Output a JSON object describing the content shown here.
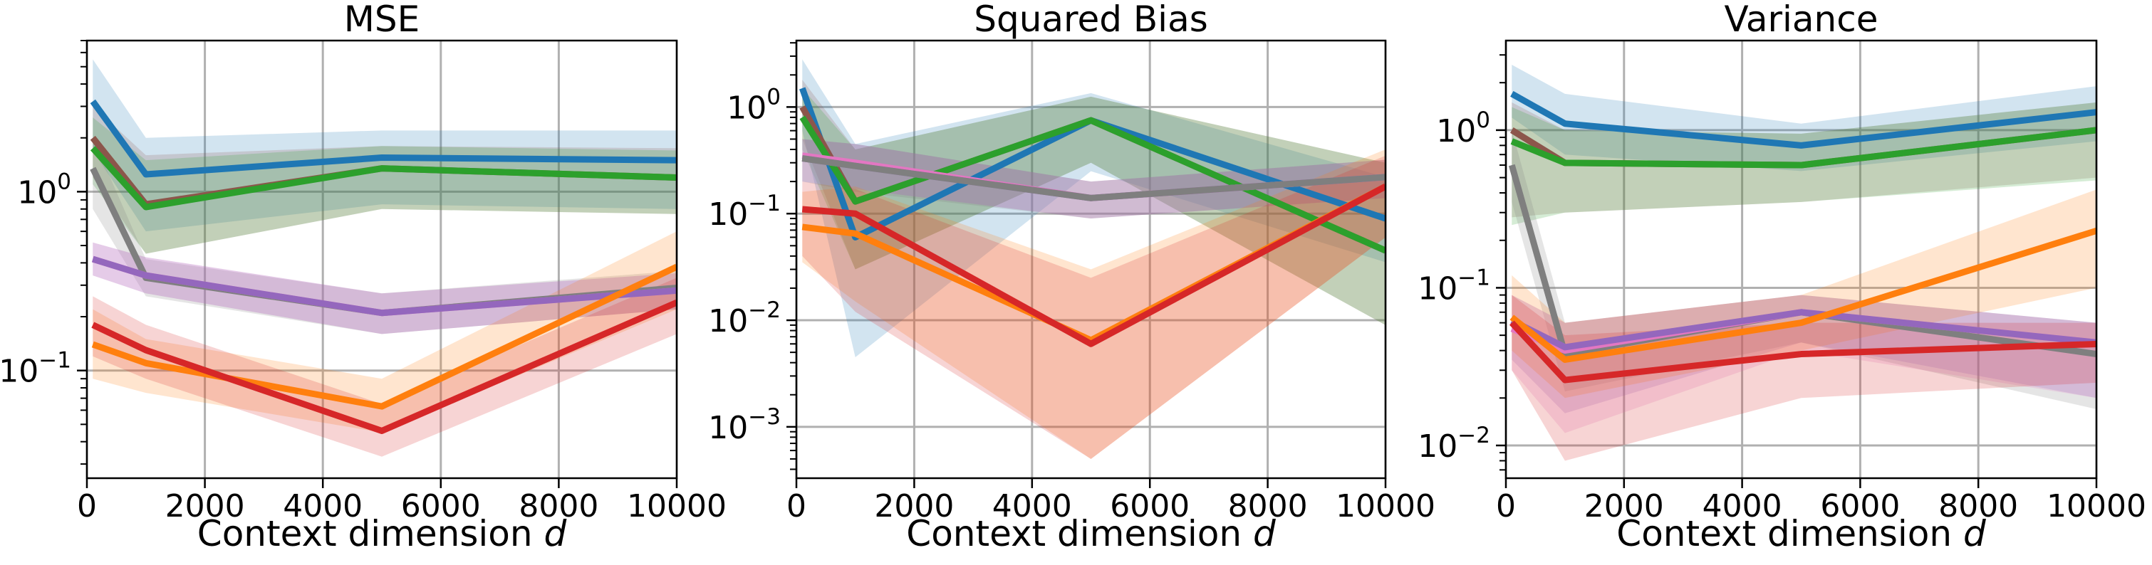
{
  "colors": {
    "blue": "#1f77b4",
    "orange": "#ff7f0e",
    "green": "#2ca02c",
    "red": "#d62728",
    "purple": "#9467bd",
    "brown": "#8c564b",
    "pink": "#e377c2",
    "gray": "#7f7f7f",
    "grid": "#b0b0b0"
  },
  "chart_data": [
    {
      "type": "line",
      "title": "MSE",
      "xlabel": "Context dimension",
      "xlabel_var": "d",
      "ylabel": "",
      "yscale": "log",
      "xlim": [
        0,
        10000
      ],
      "ylim": [
        0.025,
        7
      ],
      "grid": true,
      "x": [
        100,
        1000,
        5000,
        10000
      ],
      "x_ticks": [
        0,
        2000,
        4000,
        6000,
        8000,
        10000
      ],
      "x_tick_labels": [
        "0",
        "2000",
        "4000",
        "6000",
        "8000",
        "10000"
      ],
      "y_ticks": [
        0.1,
        1
      ],
      "y_tick_bases": [
        "10",
        "10"
      ],
      "y_tick_exps": [
        "−1",
        "0"
      ],
      "series": [
        {
          "color": "blue",
          "values": [
            3.2,
            1.25,
            1.55,
            1.5
          ],
          "lower": [
            1.7,
            0.6,
            0.85,
            0.8
          ],
          "upper": [
            5.5,
            2.0,
            2.2,
            2.2
          ]
        },
        {
          "color": "brown",
          "values": [
            2.0,
            0.85,
            1.35,
            1.2
          ],
          "lower": [
            1.2,
            0.45,
            0.8,
            0.75
          ],
          "upper": [
            3.0,
            1.6,
            1.8,
            1.75
          ]
        },
        {
          "color": "green",
          "values": [
            1.75,
            0.82,
            1.35,
            1.2
          ],
          "lower": [
            1.1,
            0.45,
            0.8,
            0.75
          ],
          "upper": [
            2.6,
            1.5,
            1.8,
            1.7
          ]
        },
        {
          "color": "gray",
          "values": [
            1.35,
            0.33,
            0.21,
            0.29
          ],
          "lower": [
            0.8,
            0.26,
            0.16,
            0.22
          ],
          "upper": [
            2.0,
            0.42,
            0.27,
            0.36
          ]
        },
        {
          "color": "pink",
          "values": [
            0.42,
            0.34,
            0.21,
            0.28
          ],
          "lower": [
            0.34,
            0.27,
            0.16,
            0.22
          ],
          "upper": [
            0.52,
            0.43,
            0.27,
            0.35
          ]
        },
        {
          "color": "purple",
          "values": [
            0.42,
            0.34,
            0.21,
            0.28
          ],
          "lower": [
            0.34,
            0.27,
            0.16,
            0.22
          ],
          "upper": [
            0.52,
            0.43,
            0.27,
            0.35
          ]
        },
        {
          "color": "orange",
          "values": [
            0.14,
            0.11,
            0.063,
            0.38
          ],
          "lower": [
            0.09,
            0.075,
            0.045,
            0.22
          ],
          "upper": [
            0.22,
            0.15,
            0.09,
            0.6
          ]
        },
        {
          "color": "red",
          "values": [
            0.18,
            0.13,
            0.046,
            0.24
          ],
          "lower": [
            0.12,
            0.09,
            0.033,
            0.16
          ],
          "upper": [
            0.26,
            0.18,
            0.065,
            0.33
          ]
        }
      ]
    },
    {
      "type": "line",
      "title": "Squared Bias",
      "xlabel": "Context dimension",
      "xlabel_var": "d",
      "ylabel": "",
      "yscale": "log",
      "xlim": [
        0,
        10000
      ],
      "ylim": [
        0.00033,
        4.2
      ],
      "grid": true,
      "x": [
        100,
        1000,
        5000,
        10000
      ],
      "x_ticks": [
        0,
        2000,
        4000,
        6000,
        8000,
        10000
      ],
      "x_tick_labels": [
        "0",
        "2000",
        "4000",
        "6000",
        "8000",
        "10000"
      ],
      "y_ticks": [
        0.001,
        0.01,
        0.1,
        1
      ],
      "y_tick_bases": [
        "10",
        "10",
        "10",
        "10"
      ],
      "y_tick_exps": [
        "−3",
        "−2",
        "−1",
        "0"
      ],
      "series": [
        {
          "color": "blue",
          "values": [
            1.5,
            0.06,
            0.75,
            0.09
          ],
          "lower": [
            0.6,
            0.0045,
            0.25,
            0.035
          ],
          "upper": [
            2.8,
            0.45,
            1.35,
            0.22
          ]
        },
        {
          "color": "brown",
          "values": [
            1.0,
            0.13,
            0.75,
            0.045
          ],
          "lower": [
            0.5,
            0.03,
            0.3,
            0.009
          ],
          "upper": [
            1.8,
            0.4,
            1.25,
            0.3
          ]
        },
        {
          "color": "green",
          "values": [
            0.8,
            0.13,
            0.75,
            0.045
          ],
          "lower": [
            0.4,
            0.03,
            0.3,
            0.009
          ],
          "upper": [
            1.5,
            0.4,
            1.25,
            0.3
          ]
        },
        {
          "color": "pink",
          "values": [
            0.35,
            0.3,
            0.14,
            0.22
          ],
          "lower": [
            0.2,
            0.17,
            0.09,
            0.14
          ],
          "upper": [
            0.5,
            0.45,
            0.2,
            0.32
          ]
        },
        {
          "color": "purple",
          "values": [
            0.33,
            0.28,
            0.14,
            0.22
          ],
          "lower": [
            0.2,
            0.17,
            0.09,
            0.14
          ],
          "upper": [
            0.5,
            0.45,
            0.2,
            0.32
          ]
        },
        {
          "color": "gray",
          "values": [
            0.33,
            0.28,
            0.14,
            0.22
          ],
          "lower": [
            0.2,
            0.16,
            0.09,
            0.14
          ],
          "upper": [
            0.5,
            0.45,
            0.2,
            0.32
          ]
        },
        {
          "color": "orange",
          "values": [
            0.075,
            0.065,
            0.0065,
            0.18
          ],
          "lower": [
            0.035,
            0.015,
            0.0005,
            0.06
          ],
          "upper": [
            0.16,
            0.18,
            0.03,
            0.4
          ]
        },
        {
          "color": "red",
          "values": [
            0.11,
            0.1,
            0.006,
            0.18
          ],
          "lower": [
            0.04,
            0.012,
            0.0005,
            0.06
          ],
          "upper": [
            0.2,
            0.17,
            0.025,
            0.35
          ]
        }
      ]
    },
    {
      "type": "line",
      "title": "Variance",
      "xlabel": "Context dimension",
      "xlabel_var": "d",
      "ylabel": "",
      "yscale": "log",
      "xlim": [
        0,
        10000
      ],
      "ylim": [
        0.0062,
        3.7
      ],
      "grid": true,
      "x": [
        100,
        1000,
        5000,
        10000
      ],
      "x_ticks": [
        0,
        2000,
        4000,
        6000,
        8000,
        10000
      ],
      "x_tick_labels": [
        "0",
        "2000",
        "4000",
        "6000",
        "8000",
        "10000"
      ],
      "y_ticks": [
        0.01,
        0.1,
        1
      ],
      "y_tick_bases": [
        "10",
        "10",
        "10"
      ],
      "y_tick_exps": [
        "−2",
        "−1",
        "0"
      ],
      "series": [
        {
          "color": "blue",
          "values": [
            1.7,
            1.1,
            0.8,
            1.3
          ],
          "lower": [
            1.2,
            0.7,
            0.55,
            0.85
          ],
          "upper": [
            2.6,
            1.7,
            1.1,
            1.9
          ]
        },
        {
          "color": "brown",
          "values": [
            1.0,
            0.62,
            0.6,
            1.0
          ],
          "lower": [
            0.28,
            0.3,
            0.35,
            0.5
          ],
          "upper": [
            1.5,
            1.0,
            0.95,
            1.5
          ]
        },
        {
          "color": "green",
          "values": [
            0.85,
            0.62,
            0.6,
            1.0
          ],
          "lower": [
            0.25,
            0.3,
            0.35,
            0.48
          ],
          "upper": [
            1.4,
            1.0,
            0.95,
            1.5
          ]
        },
        {
          "color": "gray",
          "values": [
            0.6,
            0.038,
            0.07,
            0.038
          ],
          "lower": [
            0.35,
            0.022,
            0.045,
            0.017
          ],
          "upper": [
            1.0,
            0.06,
            0.09,
            0.06
          ]
        },
        {
          "color": "pink",
          "values": [
            0.055,
            0.04,
            0.07,
            0.045
          ],
          "lower": [
            0.03,
            0.012,
            0.04,
            0.02
          ],
          "upper": [
            0.09,
            0.06,
            0.09,
            0.06
          ]
        },
        {
          "color": "purple",
          "values": [
            0.062,
            0.042,
            0.07,
            0.045
          ],
          "lower": [
            0.035,
            0.016,
            0.045,
            0.02
          ],
          "upper": [
            0.09,
            0.06,
            0.09,
            0.06
          ]
        },
        {
          "color": "orange",
          "values": [
            0.065,
            0.035,
            0.06,
            0.23
          ],
          "lower": [
            0.04,
            0.02,
            0.04,
            0.1
          ],
          "upper": [
            0.12,
            0.06,
            0.09,
            0.42
          ]
        },
        {
          "color": "red",
          "values": [
            0.06,
            0.026,
            0.038,
            0.044
          ],
          "lower": [
            0.03,
            0.008,
            0.02,
            0.025
          ],
          "upper": [
            0.09,
            0.05,
            0.06,
            0.06
          ]
        }
      ]
    }
  ]
}
